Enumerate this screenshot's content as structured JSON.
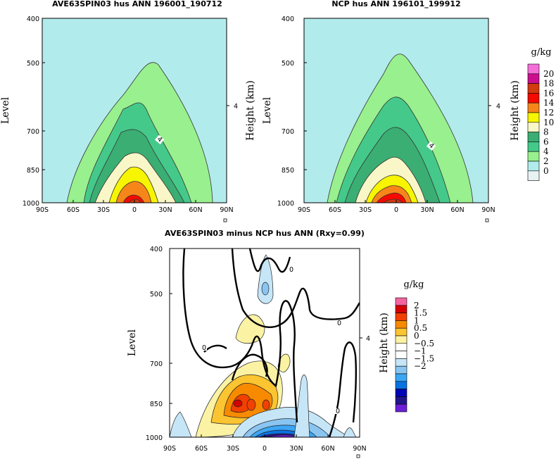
{
  "chart_data": [
    {
      "type": "heatmap",
      "id": "p1",
      "title": "AVE63SPIN03 hus ANN 196001_190712",
      "ylabel": "Level",
      "ylabel_right": "Height (km)",
      "right_tick": "4",
      "x_ticks": [
        "90S",
        "60S",
        "30S",
        "0",
        "30N",
        "60N",
        "90N"
      ],
      "y_ticks": [
        "400",
        "500",
        "700",
        "850",
        "1000"
      ],
      "x_range": [
        -90,
        90
      ],
      "y_range": [
        1000,
        400
      ],
      "units": "g/kg",
      "contour_levels": [
        2,
        4,
        6,
        8,
        10,
        12,
        14,
        16
      ],
      "contour_label": "4",
      "background_color": "#b2ebeb"
    },
    {
      "type": "heatmap",
      "id": "p2",
      "title": "NCP hus ANN 196101_199912",
      "ylabel": "Level",
      "ylabel_right": "Height (km)",
      "right_tick": "4",
      "x_ticks": [
        "90S",
        "60S",
        "30S",
        "0",
        "30N",
        "60N",
        "90N"
      ],
      "y_ticks": [
        "400",
        "500",
        "700",
        "850",
        "1000"
      ],
      "x_range": [
        -90,
        90
      ],
      "y_range": [
        1000,
        400
      ],
      "units": "g/kg",
      "contour_levels": [
        2,
        4,
        6,
        8,
        10,
        12,
        14,
        16
      ],
      "contour_label": "4",
      "background_color": "#b2ebeb"
    },
    {
      "type": "heatmap",
      "id": "p3",
      "title": "AVE63SPIN03 minus NCP hus ANN (Rxy=0.99)",
      "ylabel": "Level",
      "ylabel_right": "Height (km)",
      "right_tick": "4",
      "x_ticks": [
        "90S",
        "60S",
        "30S",
        "0",
        "30N",
        "60N",
        "90N"
      ],
      "y_ticks": [
        "400",
        "500",
        "700",
        "850",
        "1000"
      ],
      "x_range": [
        -90,
        90
      ],
      "y_range": [
        1000,
        400
      ],
      "units": "g/kg",
      "zero_contour_label": "0",
      "background_color": "#ffffff"
    }
  ],
  "colorbars": [
    {
      "id": "cb1",
      "units": "g/kg",
      "labels": [
        "20",
        "18",
        "16",
        "14",
        "12",
        "10",
        "8",
        "6",
        "4",
        "2",
        "0"
      ],
      "colors": [
        "#f46fd8",
        "#cc0e8e",
        "#d23a10",
        "#f50a00",
        "#f7861a",
        "#f7f500",
        "#f9f7c7",
        "#3bae73",
        "#45c98a",
        "#99f08e",
        "#b2ebeb",
        "#e8f2f2"
      ]
    },
    {
      "id": "cb2",
      "units": "g/kg",
      "labels": [
        "2",
        "1.5",
        "1",
        "0.5",
        "0",
        "−0.5",
        "−1",
        "−1.5",
        "−2"
      ],
      "colors": [
        "#f4649f",
        "#d50000",
        "#f24000",
        "#f88a00",
        "#fbc431",
        "#fbf2a4",
        "#ffffff",
        "#ffffff",
        "#c6e6f8",
        "#8ac5f2",
        "#3ca6f5",
        "#0a72e0",
        "#0005b5",
        "#22148a",
        "#6a1fd8"
      ]
    }
  ]
}
